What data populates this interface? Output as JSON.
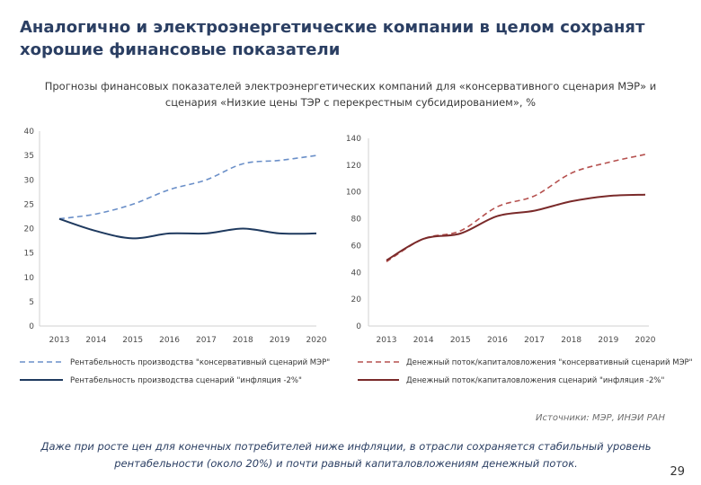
{
  "slide": {
    "title": "Аналогично и электроэнергетические компании в целом сохранят хорошие финансовые показатели",
    "subtitle": "Прогнозы финансовых показателей электроэнергетических компаний для «консервативного сценария МЭР» и сценария «Низкие цены ТЭР с перекрестным субсидированием», %",
    "source": "Источники: МЭР, ИНЭИ РАН",
    "bottom_text": "Даже при росте цен для конечных потребителей ниже инфляции, в отрасли сохраняется стабильный уровень рентабельности (около 20%) и почти равный капиталовложениям денежный поток.",
    "page_number": "29"
  },
  "chart_data": [
    {
      "type": "line",
      "categories": [
        "2013",
        "2014",
        "2015",
        "2016",
        "2017",
        "2018",
        "2019",
        "2020"
      ],
      "ylim": [
        0,
        40
      ],
      "yticks": [
        0,
        5,
        10,
        15,
        20,
        25,
        30,
        35,
        40
      ],
      "grid": false,
      "legend_position": "bottom",
      "series": [
        {
          "name": "Рентабельность производства \"консервативный сценарий МЭР\"",
          "style": "dashed",
          "color": "#6a8fc8",
          "values": [
            22,
            23,
            25,
            28,
            30,
            33.3,
            34,
            35
          ]
        },
        {
          "name": "Рентабельность производства сценарий \"инфляция -2%\"",
          "style": "solid",
          "color": "#1f3a5f",
          "values": [
            22,
            19.5,
            18,
            19,
            19,
            20,
            19,
            19
          ]
        }
      ]
    },
    {
      "type": "line",
      "categories": [
        "2013",
        "2014",
        "2015",
        "2016",
        "2017",
        "2018",
        "2019",
        "2020"
      ],
      "ylim": [
        0,
        140
      ],
      "yticks": [
        0,
        20,
        40,
        60,
        80,
        100,
        120,
        140
      ],
      "grid": false,
      "legend_position": "bottom",
      "series": [
        {
          "name": "Денежный поток/капиталовложения \"консервативный сценарий МЭР\"",
          "style": "dashed",
          "color": "#b5504e",
          "values": [
            48,
            65,
            71,
            89,
            97,
            114,
            122,
            128
          ]
        },
        {
          "name": "Денежный поток/капиталовложения сценарий \"инфляция -2%\"",
          "style": "solid",
          "color": "#7a2a2a",
          "values": [
            49,
            65,
            69,
            82,
            86,
            93,
            97,
            98
          ]
        }
      ]
    }
  ]
}
